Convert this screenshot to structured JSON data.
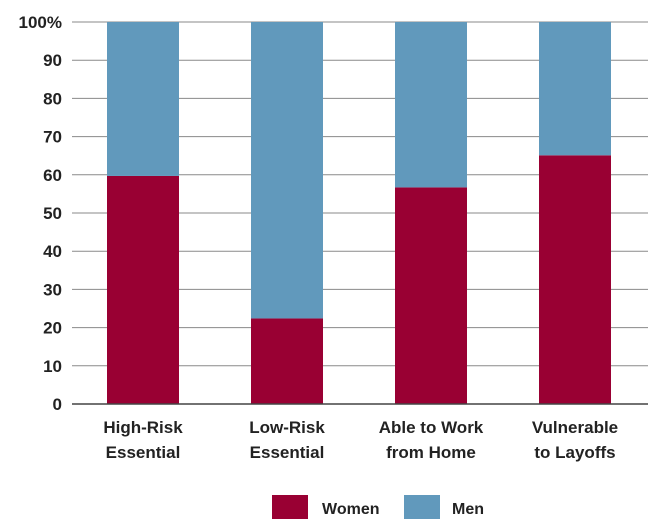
{
  "colors": {
    "women": "#990033",
    "men": "#6199bc",
    "grid": "#8a8a8a",
    "axis": "#444444",
    "text": "#222222"
  },
  "chart_data": {
    "type": "bar",
    "stacked": true,
    "categories": [
      [
        "High-Risk",
        "Essential"
      ],
      [
        "Low-Risk",
        "Essential"
      ],
      [
        "Able to Work",
        "from Home"
      ],
      [
        "Vulnerable",
        "to Layoffs"
      ]
    ],
    "series": [
      {
        "name": "Women",
        "values": [
          59.7,
          22.4,
          56.7,
          65.1
        ]
      },
      {
        "name": "Men",
        "values": [
          40.3,
          77.6,
          43.3,
          34.9
        ]
      }
    ],
    "ylim": [
      0,
      100
    ],
    "yticks": [
      0,
      10,
      20,
      30,
      40,
      50,
      60,
      70,
      80,
      90,
      100
    ],
    "ytick_labels": [
      "0",
      "10",
      "20",
      "30",
      "40",
      "50",
      "60",
      "70",
      "80",
      "90",
      "100%"
    ],
    "title": "",
    "xlabel": "",
    "ylabel": "",
    "grid": true,
    "legend_position": "bottom-center"
  }
}
